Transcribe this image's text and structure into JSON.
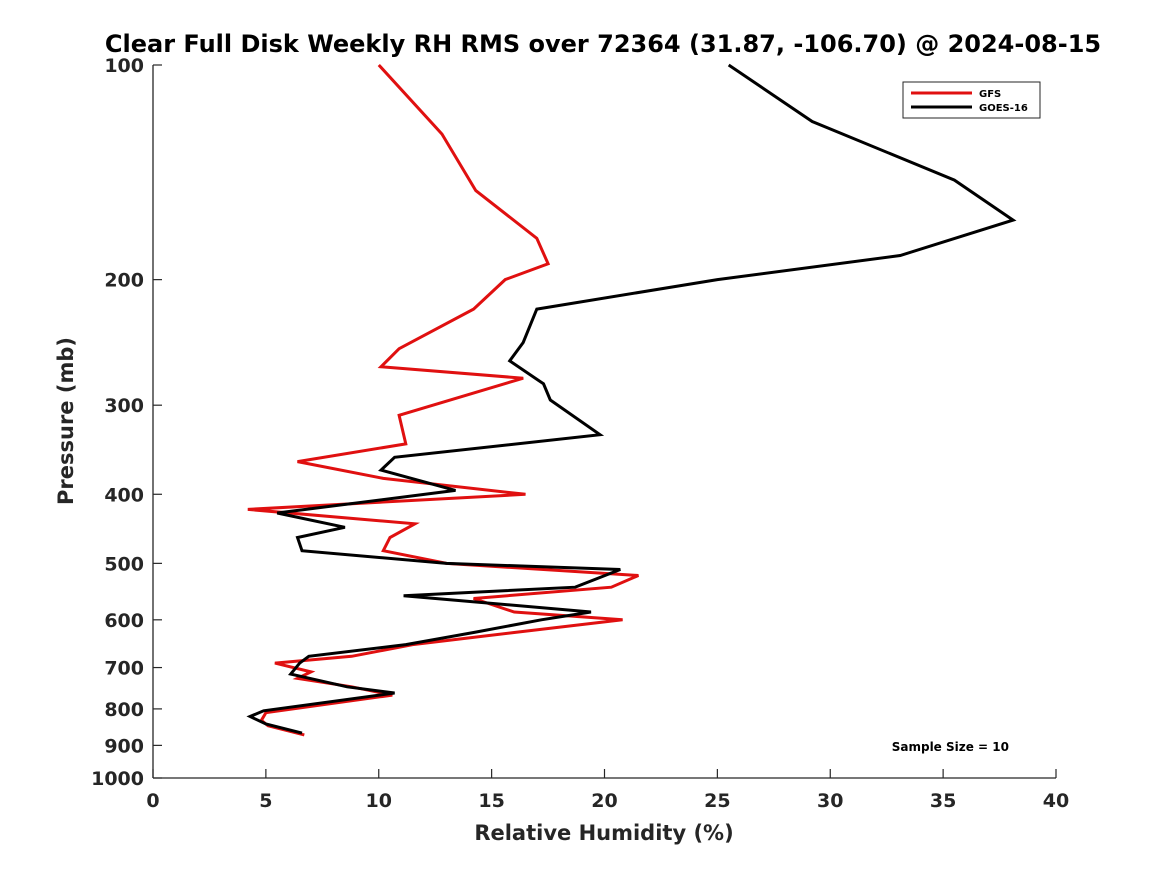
{
  "chart_data": {
    "type": "line",
    "title": "Clear Full Disk Weekly RH RMS over 72364 (31.87, -106.70) @ 2024-08-15",
    "xlabel": "Relative Humidity (%)",
    "ylabel": "Pressure (mb)",
    "xlim": [
      0,
      40
    ],
    "ylim": [
      100,
      1000
    ],
    "y_scale": "log",
    "y_reversed": true,
    "x_ticks": [
      0,
      5,
      10,
      15,
      20,
      25,
      30,
      35,
      40
    ],
    "y_ticks": [
      100,
      200,
      300,
      400,
      500,
      600,
      700,
      800,
      900,
      1000
    ],
    "grid": false,
    "legend_position": "top-right",
    "annotation": "Sample Size = 10",
    "series": [
      {
        "name": "GFS",
        "color": "#e01010",
        "points": [
          [
            10.0,
            100
          ],
          [
            12.8,
            125
          ],
          [
            14.3,
            150
          ],
          [
            17.0,
            175
          ],
          [
            17.5,
            190
          ],
          [
            15.6,
            200
          ],
          [
            14.2,
            220
          ],
          [
            10.9,
            250
          ],
          [
            10.1,
            265
          ],
          [
            16.4,
            275
          ],
          [
            10.9,
            310
          ],
          [
            11.2,
            340
          ],
          [
            6.4,
            360
          ],
          [
            10.2,
            380
          ],
          [
            16.5,
            400
          ],
          [
            4.2,
            420
          ],
          [
            11.6,
            440
          ],
          [
            10.5,
            460
          ],
          [
            10.2,
            480
          ],
          [
            13.0,
            500
          ],
          [
            21.5,
            520
          ],
          [
            20.3,
            540
          ],
          [
            14.2,
            560
          ],
          [
            16.0,
            585
          ],
          [
            20.8,
            600
          ],
          [
            16.0,
            625
          ],
          [
            11.5,
            650
          ],
          [
            8.8,
            675
          ],
          [
            5.4,
            690
          ],
          [
            7.0,
            710
          ],
          [
            6.4,
            725
          ],
          [
            8.8,
            745
          ],
          [
            10.6,
            765
          ],
          [
            5.0,
            810
          ],
          [
            4.8,
            830
          ],
          [
            5.1,
            845
          ],
          [
            6.7,
            870
          ]
        ]
      },
      {
        "name": "GOES-16",
        "color": "#000000",
        "points": [
          [
            25.5,
            100
          ],
          [
            29.2,
            120
          ],
          [
            35.5,
            145
          ],
          [
            38.1,
            165
          ],
          [
            33.1,
            185
          ],
          [
            25.0,
            200
          ],
          [
            17.0,
            220
          ],
          [
            16.4,
            245
          ],
          [
            15.8,
            260
          ],
          [
            17.3,
            280
          ],
          [
            17.6,
            295
          ],
          [
            19.8,
            330
          ],
          [
            10.7,
            355
          ],
          [
            10.1,
            370
          ],
          [
            13.4,
            395
          ],
          [
            5.5,
            425
          ],
          [
            8.5,
            445
          ],
          [
            6.4,
            460
          ],
          [
            6.6,
            480
          ],
          [
            13.0,
            500
          ],
          [
            20.7,
            510
          ],
          [
            18.7,
            540
          ],
          [
            11.1,
            555
          ],
          [
            19.4,
            585
          ],
          [
            17.2,
            600
          ],
          [
            14.2,
            625
          ],
          [
            11.2,
            650
          ],
          [
            6.9,
            675
          ],
          [
            6.5,
            690
          ],
          [
            6.1,
            715
          ],
          [
            8.6,
            745
          ],
          [
            10.7,
            760
          ],
          [
            4.9,
            805
          ],
          [
            4.3,
            820
          ],
          [
            5.0,
            840
          ],
          [
            6.6,
            865
          ]
        ]
      }
    ]
  }
}
